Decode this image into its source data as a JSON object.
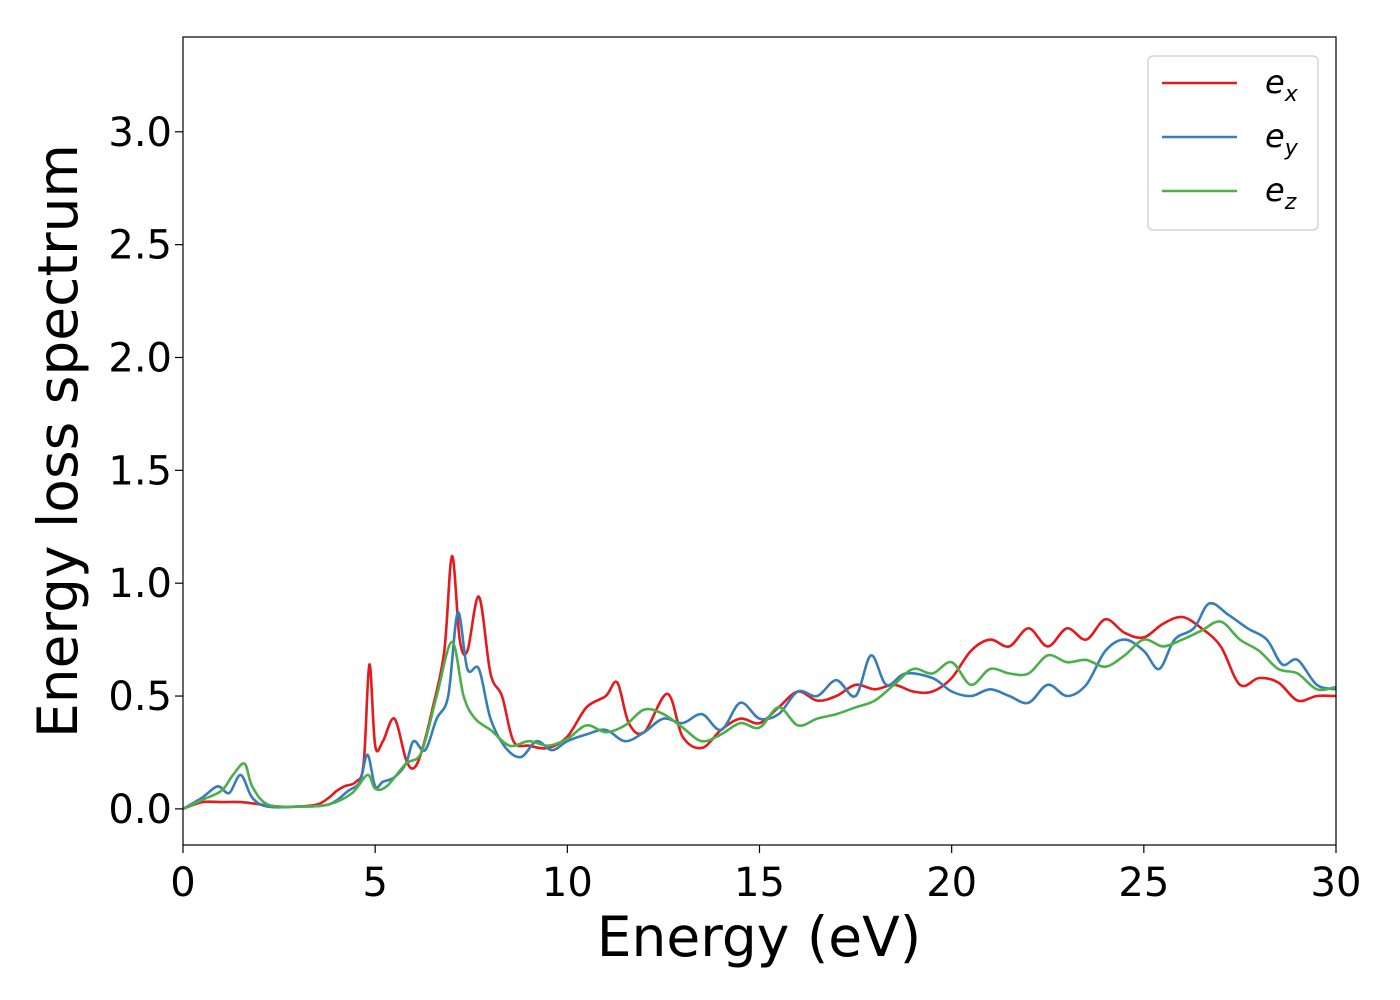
{
  "chart_data": {
    "type": "line",
    "title": "",
    "xlabel": "Energy (eV)",
    "ylabel": "Energy loss spectrum",
    "xlim": [
      0,
      30
    ],
    "ylim": [
      -0.16,
      3.42
    ],
    "xticks": [
      0,
      5,
      10,
      15,
      20,
      25,
      30
    ],
    "xtick_labels": [
      "0",
      "5",
      "10",
      "15",
      "20",
      "25",
      "30"
    ],
    "yticks": [
      0.0,
      0.5,
      1.0,
      1.5,
      2.0,
      2.5,
      3.0
    ],
    "ytick_labels": [
      "0.0",
      "0.5",
      "1.0",
      "1.5",
      "2.0",
      "2.5",
      "3.0"
    ],
    "grid": false,
    "legend_position": "top-right",
    "series": [
      {
        "name": "e_x",
        "legend_base": "e",
        "legend_sub": "x",
        "color": "#e41a1c",
        "x": [
          0,
          0.5,
          1.0,
          1.5,
          2.0,
          2.5,
          3.0,
          3.5,
          3.8,
          4.0,
          4.2,
          4.5,
          4.7,
          4.85,
          5.0,
          5.2,
          5.5,
          5.8,
          6.0,
          6.2,
          6.5,
          6.8,
          7.0,
          7.2,
          7.4,
          7.7,
          8.0,
          8.3,
          8.6,
          9.0,
          9.5,
          10.0,
          10.5,
          11.0,
          11.3,
          11.6,
          12.0,
          12.6,
          13.0,
          13.5,
          14.0,
          14.5,
          15.0,
          15.5,
          16.0,
          16.5,
          17.0,
          17.5,
          18.0,
          18.5,
          19.0,
          19.5,
          20.0,
          20.5,
          21.0,
          21.5,
          22.0,
          22.5,
          23.0,
          23.5,
          24.0,
          24.5,
          25.0,
          25.5,
          26.0,
          26.5,
          27.0,
          27.5,
          28.0,
          28.5,
          29.0,
          29.5,
          30.0
        ],
        "values": [
          0.0,
          0.03,
          0.03,
          0.03,
          0.02,
          0.01,
          0.01,
          0.02,
          0.05,
          0.08,
          0.1,
          0.12,
          0.2,
          0.64,
          0.28,
          0.3,
          0.4,
          0.22,
          0.18,
          0.25,
          0.45,
          0.7,
          1.12,
          0.75,
          0.7,
          0.94,
          0.6,
          0.5,
          0.3,
          0.28,
          0.27,
          0.32,
          0.45,
          0.5,
          0.56,
          0.38,
          0.34,
          0.51,
          0.32,
          0.27,
          0.35,
          0.4,
          0.38,
          0.45,
          0.52,
          0.48,
          0.5,
          0.55,
          0.53,
          0.55,
          0.52,
          0.52,
          0.58,
          0.7,
          0.75,
          0.72,
          0.8,
          0.72,
          0.8,
          0.75,
          0.84,
          0.78,
          0.76,
          0.82,
          0.85,
          0.8,
          0.72,
          0.55,
          0.58,
          0.56,
          0.48,
          0.5,
          0.5
        ]
      },
      {
        "name": "e_y",
        "legend_base": "e",
        "legend_sub": "y",
        "color": "#377eb8",
        "x": [
          0,
          0.5,
          0.9,
          1.2,
          1.5,
          1.8,
          2.2,
          3.0,
          3.8,
          4.3,
          4.6,
          4.8,
          5.0,
          5.2,
          5.5,
          5.8,
          6.0,
          6.3,
          6.6,
          6.9,
          7.15,
          7.4,
          7.7,
          8.0,
          8.4,
          8.8,
          9.2,
          9.6,
          10.0,
          10.5,
          11.0,
          11.5,
          12.0,
          12.5,
          13.0,
          13.5,
          14.0,
          14.5,
          15.0,
          15.5,
          16.0,
          16.5,
          17.0,
          17.5,
          17.9,
          18.3,
          18.8,
          19.5,
          20.0,
          20.5,
          21.0,
          21.5,
          22.0,
          22.5,
          23.0,
          23.5,
          24.0,
          24.5,
          25.0,
          25.4,
          25.8,
          26.3,
          26.7,
          27.2,
          27.7,
          28.2,
          28.6,
          29.0,
          29.5,
          30.0
        ],
        "values": [
          0.0,
          0.05,
          0.1,
          0.07,
          0.15,
          0.05,
          0.01,
          0.01,
          0.02,
          0.08,
          0.12,
          0.24,
          0.1,
          0.12,
          0.14,
          0.2,
          0.3,
          0.26,
          0.4,
          0.5,
          0.87,
          0.62,
          0.62,
          0.4,
          0.27,
          0.23,
          0.3,
          0.26,
          0.3,
          0.33,
          0.35,
          0.3,
          0.34,
          0.4,
          0.38,
          0.42,
          0.35,
          0.47,
          0.4,
          0.42,
          0.52,
          0.5,
          0.57,
          0.5,
          0.68,
          0.55,
          0.6,
          0.58,
          0.52,
          0.5,
          0.53,
          0.5,
          0.47,
          0.55,
          0.5,
          0.55,
          0.7,
          0.75,
          0.7,
          0.62,
          0.75,
          0.8,
          0.91,
          0.86,
          0.8,
          0.75,
          0.64,
          0.66,
          0.55,
          0.53
        ]
      },
      {
        "name": "e_z",
        "legend_base": "e",
        "legend_sub": "z",
        "color": "#4daf4a",
        "x": [
          0,
          0.5,
          1.0,
          1.3,
          1.6,
          1.8,
          2.2,
          3.0,
          3.8,
          4.4,
          4.8,
          5.0,
          5.3,
          5.8,
          6.2,
          6.6,
          7.0,
          7.3,
          7.6,
          8.0,
          8.5,
          9.0,
          9.5,
          10.0,
          10.5,
          11.0,
          11.5,
          12.0,
          12.5,
          13.0,
          13.5,
          14.0,
          14.5,
          15.0,
          15.5,
          16.0,
          16.5,
          17.0,
          17.5,
          18.0,
          18.5,
          19.0,
          19.5,
          20.0,
          20.5,
          21.0,
          21.5,
          22.0,
          22.5,
          23.0,
          23.5,
          24.0,
          24.5,
          25.0,
          25.5,
          26.0,
          26.5,
          27.0,
          27.5,
          28.0,
          28.5,
          29.0,
          29.5,
          30.0
        ],
        "values": [
          0.0,
          0.04,
          0.08,
          0.15,
          0.2,
          0.1,
          0.02,
          0.01,
          0.02,
          0.07,
          0.15,
          0.09,
          0.1,
          0.2,
          0.25,
          0.5,
          0.74,
          0.5,
          0.4,
          0.35,
          0.28,
          0.3,
          0.28,
          0.31,
          0.37,
          0.34,
          0.37,
          0.44,
          0.42,
          0.36,
          0.3,
          0.33,
          0.38,
          0.36,
          0.45,
          0.37,
          0.4,
          0.42,
          0.45,
          0.48,
          0.55,
          0.62,
          0.6,
          0.65,
          0.55,
          0.62,
          0.6,
          0.6,
          0.68,
          0.65,
          0.66,
          0.63,
          0.68,
          0.75,
          0.72,
          0.75,
          0.79,
          0.83,
          0.75,
          0.7,
          0.62,
          0.6,
          0.53,
          0.54
        ]
      }
    ]
  }
}
